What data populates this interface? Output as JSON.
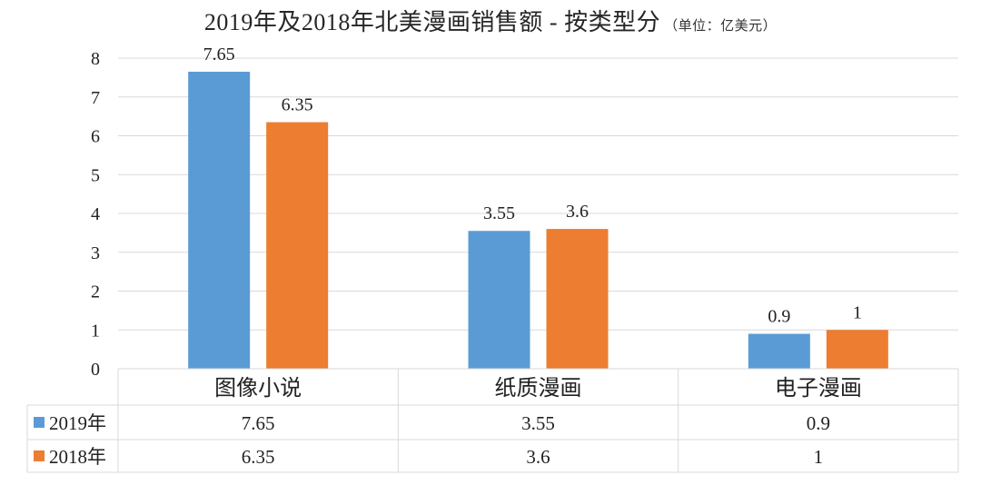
{
  "title": {
    "main": "2019年及2018年北美漫画销售额 - 按类型分",
    "unit": "（单位：亿美元）"
  },
  "chart_data": {
    "type": "bar",
    "title": "2019年及2018年北美漫画销售额 - 按类型分",
    "subtitle": "（单位：亿美元）",
    "categories": [
      "图像小说",
      "纸质漫画",
      "电子漫画"
    ],
    "series": [
      {
        "name": "2019年",
        "color": "#5B9BD5",
        "values": [
          7.65,
          3.55,
          0.9
        ],
        "table_values": [
          "7.65",
          "3.55",
          "0.9"
        ]
      },
      {
        "name": "2018年",
        "color": "#ED7D31",
        "values": [
          6.35,
          3.6,
          1
        ],
        "table_values": [
          "6.35",
          "3.6",
          "1"
        ]
      }
    ],
    "ylim": [
      0,
      8
    ],
    "yticks": [
      "0",
      "1",
      "2",
      "3",
      "4",
      "5",
      "6",
      "7",
      "8"
    ],
    "data_labels": true,
    "grid": true,
    "legend": "data-table"
  }
}
